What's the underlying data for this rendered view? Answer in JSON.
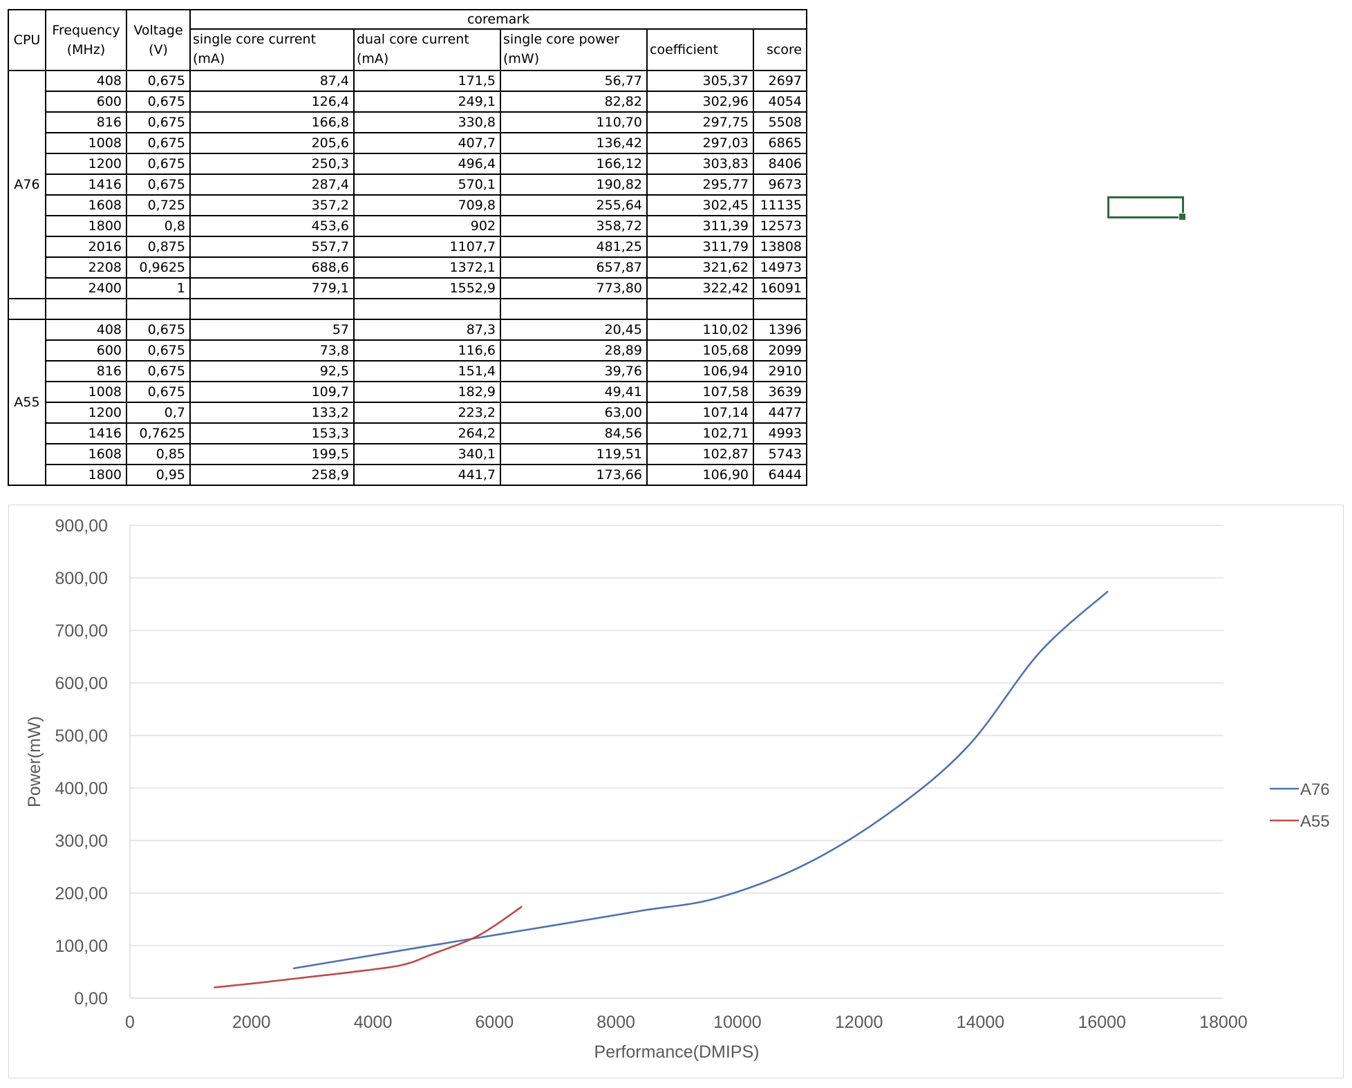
{
  "table": {
    "group_header": "coremark",
    "headers": {
      "cpu": "CPU",
      "frequency": [
        "Frequency",
        "(MHz)"
      ],
      "voltage": [
        "Voltage",
        "(V)"
      ],
      "single_core_current": [
        "single core current",
        "(mA)"
      ],
      "dual_core_current": [
        "dual core current",
        "(mA)"
      ],
      "single_core_power": [
        "single core power",
        "(mW)"
      ],
      "coefficient": "coefficient",
      "score": "score"
    },
    "groups": [
      {
        "cpu": "A76",
        "rows": [
          [
            "408",
            "0,675",
            "87,4",
            "171,5",
            "56,77",
            "305,37",
            "2697"
          ],
          [
            "600",
            "0,675",
            "126,4",
            "249,1",
            "82,82",
            "302,96",
            "4054"
          ],
          [
            "816",
            "0,675",
            "166,8",
            "330,8",
            "110,70",
            "297,75",
            "5508"
          ],
          [
            "1008",
            "0,675",
            "205,6",
            "407,7",
            "136,42",
            "297,03",
            "6865"
          ],
          [
            "1200",
            "0,675",
            "250,3",
            "496,4",
            "166,12",
            "303,83",
            "8406"
          ],
          [
            "1416",
            "0,675",
            "287,4",
            "570,1",
            "190,82",
            "295,77",
            "9673"
          ],
          [
            "1608",
            "0,725",
            "357,2",
            "709,8",
            "255,64",
            "302,45",
            "11135"
          ],
          [
            "1800",
            "0,8",
            "453,6",
            "902",
            "358,72",
            "311,39",
            "12573"
          ],
          [
            "2016",
            "0,875",
            "557,7",
            "1107,7",
            "481,25",
            "311,79",
            "13808"
          ],
          [
            "2208",
            "0,9625",
            "688,6",
            "1372,1",
            "657,87",
            "321,62",
            "14973"
          ],
          [
            "2400",
            "1",
            "779,1",
            "1552,9",
            "773,80",
            "322,42",
            "16091"
          ]
        ]
      },
      {
        "cpu": "A55",
        "rows": [
          [
            "408",
            "0,675",
            "57",
            "87,3",
            "20,45",
            "110,02",
            "1396"
          ],
          [
            "600",
            "0,675",
            "73,8",
            "116,6",
            "28,89",
            "105,68",
            "2099"
          ],
          [
            "816",
            "0,675",
            "92,5",
            "151,4",
            "39,76",
            "106,94",
            "2910"
          ],
          [
            "1008",
            "0,675",
            "109,7",
            "182,9",
            "49,41",
            "107,58",
            "3639"
          ],
          [
            "1200",
            "0,7",
            "133,2",
            "223,2",
            "63,00",
            "107,14",
            "4477"
          ],
          [
            "1416",
            "0,7625",
            "153,3",
            "264,2",
            "84,56",
            "102,71",
            "4993"
          ],
          [
            "1608",
            "0,85",
            "199,5",
            "340,1",
            "119,51",
            "102,87",
            "5743"
          ],
          [
            "1800",
            "0,95",
            "258,9",
            "441,7",
            "173,66",
            "106,90",
            "6444"
          ]
        ]
      }
    ]
  },
  "chart_data": {
    "type": "line",
    "title": "",
    "xlabel": "Performance(DMIPS)",
    "ylabel": "Power(mW)",
    "xlim": [
      0,
      18000
    ],
    "ylim": [
      0,
      900
    ],
    "x_ticks": [
      "0",
      "2000",
      "4000",
      "6000",
      "8000",
      "10000",
      "12000",
      "14000",
      "16000",
      "18000"
    ],
    "y_ticks": [
      "0,00",
      "100,00",
      "200,00",
      "300,00",
      "400,00",
      "500,00",
      "600,00",
      "700,00",
      "800,00",
      "900,00"
    ],
    "grid": "horizontal",
    "legend_position": "right",
    "series": [
      {
        "name": "A76",
        "color": "#4f72b0",
        "x": [
          2697,
          4054,
          5508,
          6865,
          8406,
          9673,
          11135,
          12573,
          13808,
          14973,
          16091
        ],
        "y": [
          56.77,
          82.82,
          110.7,
          136.42,
          166.12,
          190.82,
          255.64,
          358.72,
          481.25,
          657.87,
          773.8
        ]
      },
      {
        "name": "A55",
        "color": "#be4b48",
        "x": [
          1396,
          2099,
          2910,
          3639,
          4477,
          4993,
          5743,
          6444
        ],
        "y": [
          20.45,
          28.89,
          39.76,
          49.41,
          63.0,
          84.56,
          119.51,
          173.66
        ]
      }
    ]
  }
}
